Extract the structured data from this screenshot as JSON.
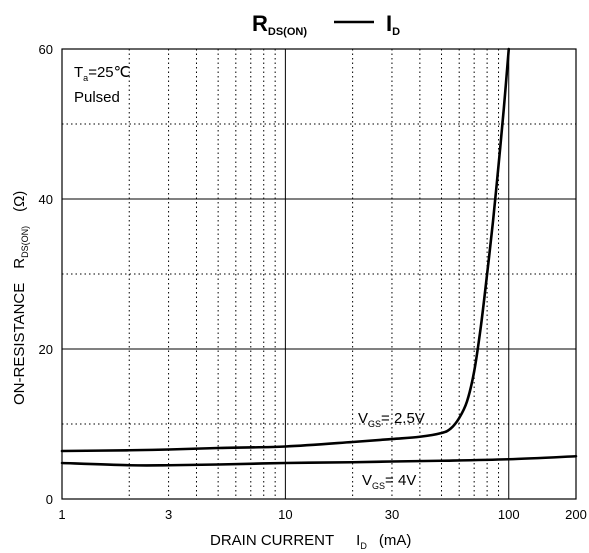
{
  "chart_data": {
    "type": "line",
    "title": {
      "left_main": "R",
      "left_sub": "DS(ON)",
      "right_main": "I",
      "right_sub": "D"
    },
    "xlabel": {
      "text": "DRAIN CURRENT",
      "symbol": "I",
      "symbol_sub": "D",
      "unit": "(mA)"
    },
    "ylabel": {
      "text": "ON-RESISTANCE",
      "symbol": "R",
      "symbol_sub": "DS(ON)",
      "unit": "(Ω)"
    },
    "x_scale": "log",
    "xlim": [
      1,
      200
    ],
    "ylim": [
      0,
      60
    ],
    "x_ticks": [
      1,
      3,
      10,
      30,
      100,
      200
    ],
    "y_ticks": [
      0,
      20,
      40,
      60
    ],
    "x_minor_grid": [
      2,
      3,
      4,
      5,
      6,
      7,
      8,
      9,
      20,
      30,
      40,
      50,
      60,
      70,
      80,
      90
    ],
    "y_minor_grid": [
      10,
      30,
      50
    ],
    "grid": true,
    "conditions": {
      "line1_main": "T",
      "line1_sub": "a",
      "line1_rest": "=25℃",
      "line2": "Pulsed"
    },
    "series": [
      {
        "name_main": "V",
        "name_sub": "GS",
        "name_rest": "= 2.5V",
        "x": [
          1,
          2,
          3,
          5,
          10,
          20,
          30,
          40,
          50,
          55,
          60,
          65,
          70,
          75,
          80,
          85,
          90,
          95,
          100
        ],
        "y": [
          6.4,
          6.5,
          6.6,
          6.8,
          7.0,
          7.6,
          8.0,
          8.3,
          8.8,
          9.4,
          10.8,
          13.0,
          17.0,
          23.0,
          30.0,
          37.0,
          44.5,
          52.0,
          60.0
        ]
      },
      {
        "name_main": "V",
        "name_sub": "GS",
        "name_rest": "= 4V",
        "x": [
          1,
          2,
          3,
          5,
          10,
          20,
          30,
          50,
          100,
          200
        ],
        "y": [
          4.8,
          4.5,
          4.5,
          4.6,
          4.8,
          4.9,
          5.0,
          5.1,
          5.3,
          5.7
        ]
      }
    ]
  }
}
